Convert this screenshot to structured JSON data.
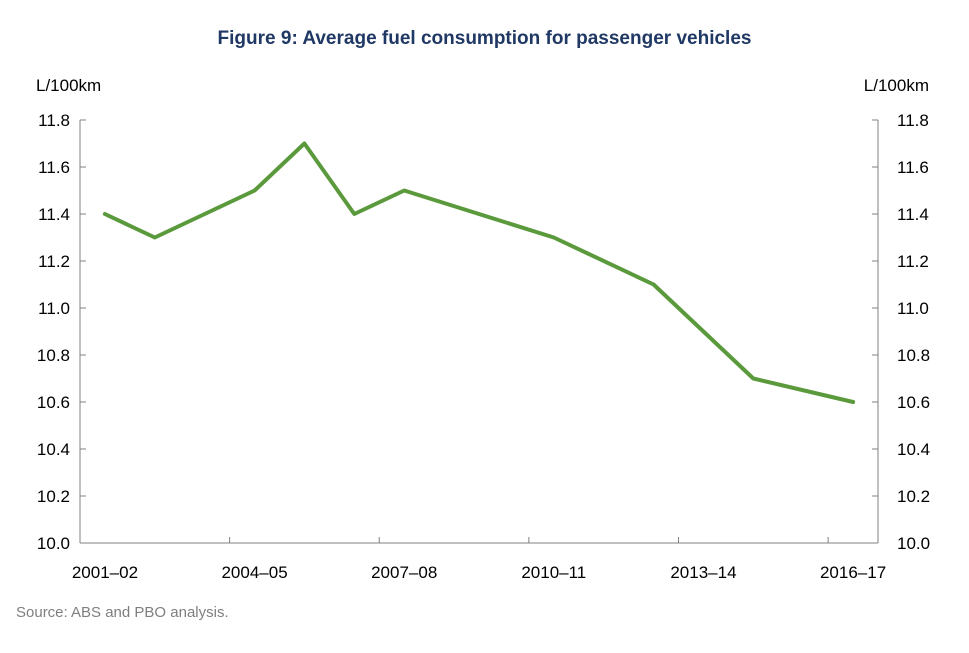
{
  "chart_data": {
    "type": "line",
    "title": "Figure 9: Average fuel consumption for passenger vehicles",
    "y_unit_left": "L/100km",
    "y_unit_right": "L/100km",
    "x_tick_labels": [
      "2001–02",
      "2004–05",
      "2007–08",
      "2010–11",
      "2013–14",
      "2016–17"
    ],
    "y_tick_labels": [
      "10.0",
      "10.2",
      "10.4",
      "10.6",
      "10.8",
      "11.0",
      "11.2",
      "11.4",
      "11.6",
      "11.8"
    ],
    "x": [
      "2001–02",
      "2002–03",
      "2004–05",
      "2005–06",
      "2006–07",
      "2007–08",
      "2010–11",
      "2012–13",
      "2014–15",
      "2016–17"
    ],
    "series": [
      {
        "values": [
          11.4,
          11.3,
          11.5,
          11.7,
          11.4,
          11.5,
          11.3,
          11.1,
          10.7,
          10.6
        ]
      }
    ],
    "ylim": [
      10.0,
      11.8
    ],
    "grid": false,
    "legend": "none",
    "line_color": "#5b9a3c",
    "axis_color": "#808080"
  },
  "source_text": "Source: ABS and PBO analysis."
}
